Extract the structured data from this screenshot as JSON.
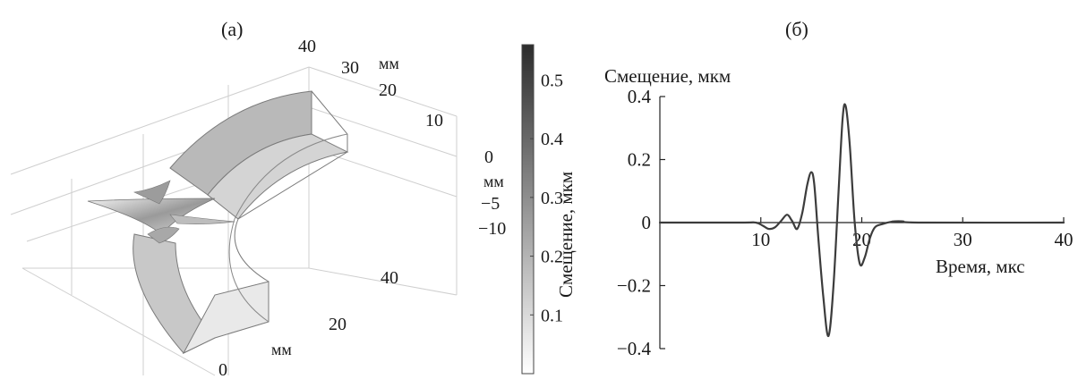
{
  "chart_data": [
    {
      "id": "a",
      "type": "surface-3d",
      "label": "(а)",
      "z_ticks": [
        "40",
        "30",
        "20",
        "10"
      ],
      "z_unit": "мм",
      "side_ticks": [
        "0",
        "−5",
        "−10"
      ],
      "side_unit": "мм",
      "x_ticks": [
        "40",
        "20",
        "0"
      ],
      "x_unit": "мм",
      "colorbar": {
        "label": "Смещение, мкм",
        "ticks": [
          "0.5",
          "0.4",
          "0.3",
          "0.2",
          "0.1"
        ],
        "tick_values": [
          0.5,
          0.4,
          0.3,
          0.2,
          0.1
        ],
        "range": [
          0,
          0.56
        ],
        "gradient": [
          "#ffffff",
          "#2c2c2c"
        ]
      }
    },
    {
      "id": "b",
      "type": "line",
      "label": "(б)",
      "ylabel": "Смещение, мкм",
      "xlabel": "Время, мкс",
      "y_side_label": "Смещение, мкм",
      "xlim": [
        0,
        40
      ],
      "ylim": [
        -0.4,
        0.4
      ],
      "x_ticks": [
        10,
        20,
        30,
        40
      ],
      "x_tick_labels": [
        "10",
        "20",
        "30",
        "40"
      ],
      "y_ticks": [
        0.4,
        0.2,
        0,
        -0.2,
        -0.4
      ],
      "y_tick_labels": [
        "0.4",
        "0.2",
        "0",
        "−0.2",
        "−0.4"
      ],
      "grid": false,
      "series": [
        {
          "color": "#3c3c3c",
          "x": [
            0,
            8,
            9.5,
            10.2,
            10.8,
            11.4,
            12,
            12.6,
            13.1,
            13.6,
            14.1,
            14.6,
            15.0,
            15.3,
            15.7,
            16.2,
            16.7,
            17.2,
            17.7,
            18.1,
            18.4,
            18.8,
            19.3,
            19.8,
            20.3,
            20.8,
            21.3,
            22.0,
            23,
            24,
            26,
            40
          ],
          "y": [
            0,
            0,
            0,
            -0.01,
            -0.02,
            -0.015,
            0.005,
            0.025,
            0.005,
            -0.02,
            0.03,
            0.12,
            0.16,
            0.12,
            -0.05,
            -0.24,
            -0.36,
            -0.2,
            0.1,
            0.33,
            0.37,
            0.25,
            0.0,
            -0.13,
            -0.11,
            -0.05,
            -0.015,
            -0.005,
            0.003,
            0.004,
            0,
            0
          ]
        }
      ]
    }
  ]
}
